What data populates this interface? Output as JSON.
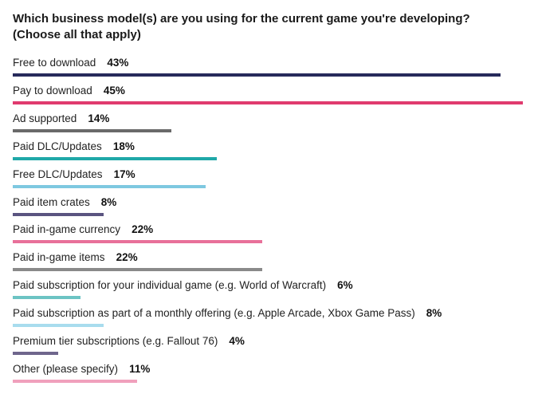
{
  "chart_data": {
    "type": "bar",
    "orientation": "horizontal",
    "title_lines": [
      "Which business model(s) are you using for the current game you're developing?",
      "(Choose all that apply)"
    ],
    "categories": [
      "Free to download",
      "Pay to download",
      "Ad supported",
      "Paid DLC/Updates",
      "Free DLC/Updates",
      "Paid item crates",
      "Paid in-game currency",
      "Paid in-game items",
      "Paid subscription for your individual game (e.g. World of Warcraft)",
      "Paid subscription as part of a monthly offering (e.g. Apple Arcade, Xbox Game Pass)",
      "Premium tier subscriptions (e.g. Fallout 76)",
      "Other (please specify)"
    ],
    "values": [
      43,
      45,
      14,
      18,
      17,
      8,
      22,
      22,
      6,
      8,
      4,
      11
    ],
    "value_labels": [
      "43%",
      "45%",
      "14%",
      "18%",
      "17%",
      "8%",
      "22%",
      "22%",
      "6%",
      "8%",
      "4%",
      "11%"
    ],
    "unit": "%",
    "xlim": [
      0,
      45
    ],
    "colors": [
      "#272a5b",
      "#e03a6e",
      "#6a6a6a",
      "#1fa8a8",
      "#7ec8e0",
      "#5a5480",
      "#e8709a",
      "#8a8a8a",
      "#6cc4c4",
      "#a8dcee",
      "#6f668c",
      "#f0a0bc"
    ]
  }
}
